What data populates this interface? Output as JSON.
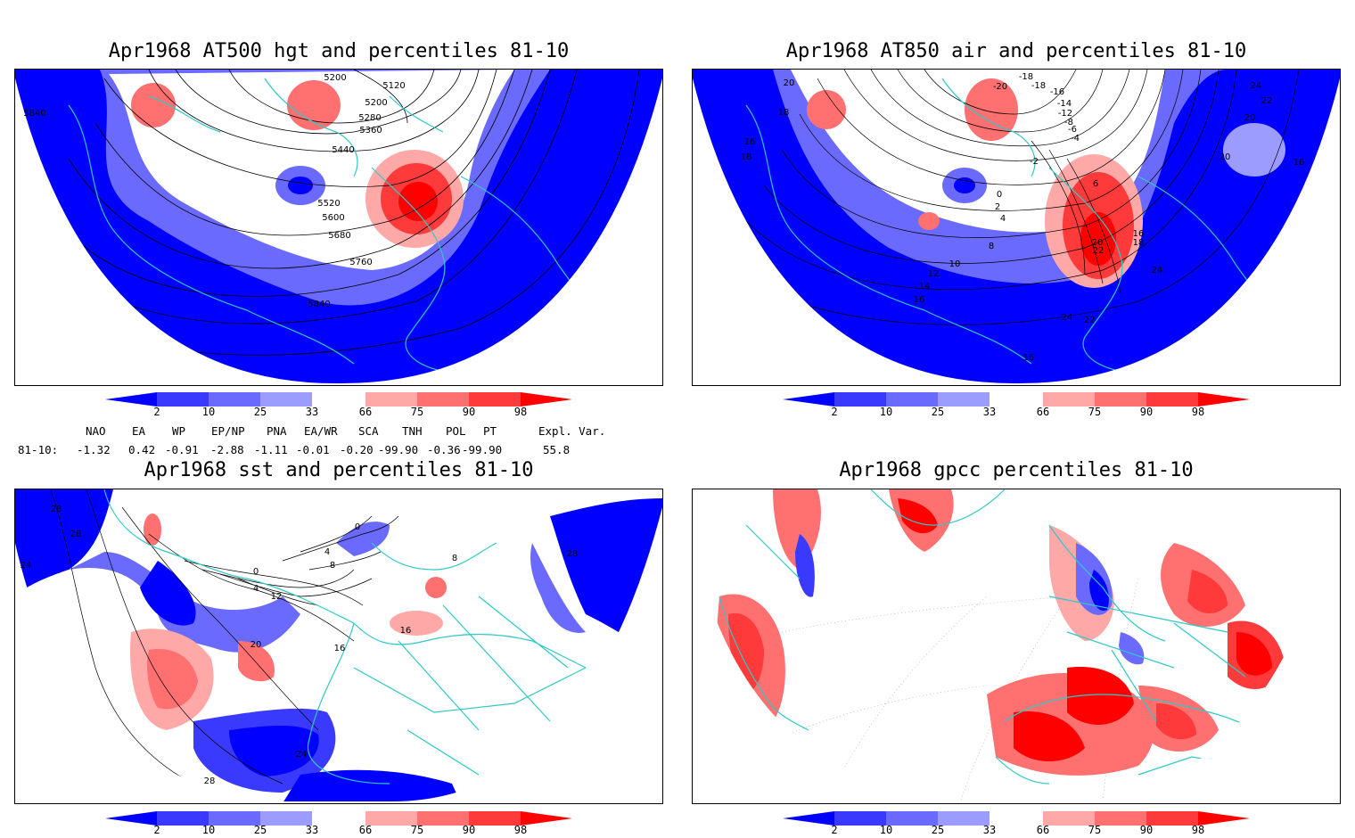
{
  "panels": [
    {
      "title": "Apr1968 AT500 hgt and percentiles 81-10",
      "contour_labels": [
        "5200",
        "5120",
        "5200",
        "5280",
        "5360",
        "5440",
        "5520",
        "5600",
        "5680",
        "5760",
        "5840",
        "5840"
      ]
    },
    {
      "title": "Apr1968 AT850 air and percentiles 81-10",
      "contour_labels": [
        "20",
        "-18",
        "-20",
        "-18",
        "-16",
        "-14",
        "-12",
        "-8",
        "-6",
        "-4",
        "-2",
        "0",
        "2",
        "4",
        "6",
        "8",
        "10",
        "12",
        "14",
        "16",
        "16",
        "16",
        "18",
        "18",
        "18",
        "20",
        "20",
        "20",
        "22",
        "22",
        "22",
        "24",
        "24",
        "24",
        "16",
        "16"
      ]
    },
    {
      "title": "Apr1968 sst and percentiles 81-10",
      "contour_labels": [
        "28",
        "24",
        "28",
        "0",
        "0",
        "4",
        "4",
        "8",
        "8",
        "12",
        "16",
        "16",
        "20",
        "24",
        "28",
        "28"
      ]
    },
    {
      "title": "Apr1968 gpcc percentiles 81-10",
      "contour_labels": []
    }
  ],
  "colorbar": {
    "ticks": [
      "2",
      "10",
      "25",
      "33",
      "66",
      "75",
      "90",
      "98"
    ],
    "colors": [
      "#0000ff",
      "#3a3aff",
      "#6a6aff",
      "#9c9cff",
      "#b8b8ff",
      "#ffffff",
      "#ffa8a8",
      "#ff7070",
      "#ff3a3a",
      "#ff0000"
    ]
  },
  "indices": {
    "headers": [
      "NAO",
      "EA",
      "WP",
      "EP/NP",
      "PNA",
      "EA/WR",
      "SCA",
      "TNH",
      "POL",
      "PT",
      "Expl. Var."
    ],
    "row_label": "81-10:",
    "values": [
      "-1.32",
      "0.42",
      "-0.91",
      "-2.88",
      "-1.11",
      "-0.01",
      "-0.20",
      "-99.90",
      "-0.36",
      "-99.90",
      "55.8"
    ]
  }
}
